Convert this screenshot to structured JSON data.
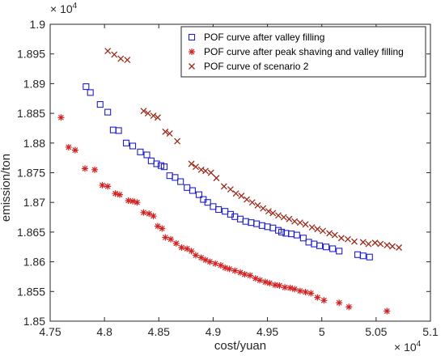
{
  "chart_data": {
    "type": "scatter",
    "xlabel": "cost/yuan",
    "ylabel": "emission/ton",
    "x_multiplier_label": "× 10",
    "x_multiplier_exp": "4",
    "y_multiplier_label": "× 10",
    "y_multiplier_exp": "4",
    "xlim": [
      4.75,
      5.1
    ],
    "ylim": [
      1.85,
      1.9
    ],
    "x_ticks": [
      "4.75",
      "4.8",
      "4.85",
      "4.9",
      "4.95",
      "5",
      "5.05",
      "5.1"
    ],
    "x_tick_values": [
      4.75,
      4.8,
      4.85,
      4.9,
      4.95,
      5.0,
      5.05,
      5.1
    ],
    "y_ticks": [
      "1.85",
      "1.855",
      "1.86",
      "1.865",
      "1.87",
      "1.875",
      "1.88",
      "1.885",
      "1.89",
      "1.895",
      "1.9"
    ],
    "y_tick_values": [
      1.85,
      1.855,
      1.86,
      1.865,
      1.87,
      1.875,
      1.88,
      1.885,
      1.89,
      1.895,
      1.9
    ],
    "grid": false,
    "legend_position": "top-right",
    "series": [
      {
        "name": "POF curve after  valley filling",
        "marker": "square",
        "color": "#1f1fcf",
        "points": [
          [
            4.783,
            1.8895
          ],
          [
            4.787,
            1.8885
          ],
          [
            4.796,
            1.8865
          ],
          [
            4.803,
            1.8852
          ],
          [
            4.808,
            1.8822
          ],
          [
            4.813,
            1.8821
          ],
          [
            4.82,
            1.88
          ],
          [
            4.826,
            1.8795
          ],
          [
            4.833,
            1.8785
          ],
          [
            4.839,
            1.878
          ],
          [
            4.843,
            1.877
          ],
          [
            4.848,
            1.8765
          ],
          [
            4.852,
            1.8762
          ],
          [
            4.855,
            1.876
          ],
          [
            4.86,
            1.8745
          ],
          [
            4.865,
            1.8742
          ],
          [
            4.87,
            1.8735
          ],
          [
            4.876,
            1.8725
          ],
          [
            4.881,
            1.872
          ],
          [
            4.887,
            1.8713
          ],
          [
            4.891,
            1.8705
          ],
          [
            4.895,
            1.87
          ],
          [
            4.9,
            1.8693
          ],
          [
            4.905,
            1.8688
          ],
          [
            4.911,
            1.8685
          ],
          [
            4.916,
            1.868
          ],
          [
            4.92,
            1.8676
          ],
          [
            4.925,
            1.8672
          ],
          [
            4.93,
            1.8668
          ],
          [
            4.935,
            1.8666
          ],
          [
            4.94,
            1.8664
          ],
          [
            4.945,
            1.8661
          ],
          [
            4.95,
            1.8659
          ],
          [
            4.955,
            1.8657
          ],
          [
            4.96,
            1.8653
          ],
          [
            4.963,
            1.865
          ],
          [
            4.967,
            1.8648
          ],
          [
            4.972,
            1.8647
          ],
          [
            4.977,
            1.8645
          ],
          [
            4.983,
            1.864
          ],
          [
            4.988,
            1.8633
          ],
          [
            4.993,
            1.863
          ],
          [
            4.998,
            1.8627
          ],
          [
            5.004,
            1.8625
          ],
          [
            5.01,
            1.8622
          ],
          [
            5.016,
            1.8618
          ],
          [
            5.033,
            1.8612
          ],
          [
            5.038,
            1.861
          ],
          [
            5.044,
            1.8608
          ]
        ]
      },
      {
        "name": "POF curve after peak shaving and valley filling",
        "marker": "star",
        "color": "#d42020",
        "points": [
          [
            4.76,
            1.8843
          ],
          [
            4.767,
            1.8793
          ],
          [
            4.773,
            1.8788
          ],
          [
            4.782,
            1.8757
          ],
          [
            4.791,
            1.8755
          ],
          [
            4.798,
            1.8729
          ],
          [
            4.803,
            1.8727
          ],
          [
            4.81,
            1.8715
          ],
          [
            4.814,
            1.8713
          ],
          [
            4.822,
            1.8703
          ],
          [
            4.826,
            1.8702
          ],
          [
            4.83,
            1.87
          ],
          [
            4.836,
            1.8683
          ],
          [
            4.841,
            1.8681
          ],
          [
            4.845,
            1.8677
          ],
          [
            4.849,
            1.866
          ],
          [
            4.853,
            1.8656
          ],
          [
            4.856,
            1.8641
          ],
          [
            4.861,
            1.8638
          ],
          [
            4.866,
            1.8631
          ],
          [
            4.871,
            1.8624
          ],
          [
            4.876,
            1.8622
          ],
          [
            4.88,
            1.8618
          ],
          [
            4.884,
            1.8611
          ],
          [
            4.889,
            1.8607
          ],
          [
            4.893,
            1.8603
          ],
          [
            4.897,
            1.86
          ],
          [
            4.902,
            1.8597
          ],
          [
            4.907,
            1.8594
          ],
          [
            4.911,
            1.859
          ],
          [
            4.915,
            1.8588
          ],
          [
            4.92,
            1.8585
          ],
          [
            4.925,
            1.8582
          ],
          [
            4.929,
            1.8579
          ],
          [
            4.934,
            1.8577
          ],
          [
            4.939,
            1.8572
          ],
          [
            4.943,
            1.8569
          ],
          [
            4.948,
            1.8566
          ],
          [
            4.952,
            1.8564
          ],
          [
            4.957,
            1.8561
          ],
          [
            4.961,
            1.856
          ],
          [
            4.966,
            1.8557
          ],
          [
            4.971,
            1.8556
          ],
          [
            4.975,
            1.8554
          ],
          [
            4.98,
            1.8551
          ],
          [
            4.985,
            1.8549
          ],
          [
            4.99,
            1.8547
          ],
          [
            4.996,
            1.854
          ],
          [
            5.002,
            1.8535
          ],
          [
            5.016,
            1.8531
          ],
          [
            5.025,
            1.8524
          ],
          [
            5.06,
            1.8517
          ]
        ]
      },
      {
        "name": "POF curve of scenario 2",
        "marker": "x",
        "color": "#9c2a1a",
        "points": [
          [
            4.803,
            1.8955
          ],
          [
            4.809,
            1.8949
          ],
          [
            4.815,
            1.8942
          ],
          [
            4.821,
            1.894
          ],
          [
            4.836,
            1.8854
          ],
          [
            4.84,
            1.885
          ],
          [
            4.845,
            1.8846
          ],
          [
            4.849,
            1.8843
          ],
          [
            4.856,
            1.8819
          ],
          [
            4.86,
            1.8816
          ],
          [
            4.867,
            1.8803
          ],
          [
            4.88,
            1.8765
          ],
          [
            4.884,
            1.876
          ],
          [
            4.889,
            1.8755
          ],
          [
            4.893,
            1.8753
          ],
          [
            4.898,
            1.875
          ],
          [
            4.903,
            1.8741
          ],
          [
            4.91,
            1.8727
          ],
          [
            4.916,
            1.8722
          ],
          [
            4.921,
            1.8715
          ],
          [
            4.926,
            1.8711
          ],
          [
            4.931,
            1.8705
          ],
          [
            4.936,
            1.87
          ],
          [
            4.941,
            1.8695
          ],
          [
            4.946,
            1.869
          ],
          [
            4.951,
            1.8685
          ],
          [
            4.955,
            1.8682
          ],
          [
            4.96,
            1.8678
          ],
          [
            4.965,
            1.8675
          ],
          [
            4.97,
            1.8672
          ],
          [
            4.975,
            1.8668
          ],
          [
            4.98,
            1.8666
          ],
          [
            4.985,
            1.8663
          ],
          [
            4.991,
            1.8658
          ],
          [
            4.996,
            1.8655
          ],
          [
            5.001,
            1.8652
          ],
          [
            5.007,
            1.8648
          ],
          [
            5.012,
            1.8645
          ],
          [
            5.018,
            1.864
          ],
          [
            5.024,
            1.8638
          ],
          [
            5.03,
            1.8634
          ],
          [
            5.038,
            1.8633
          ],
          [
            5.043,
            1.863
          ],
          [
            5.049,
            1.8632
          ],
          [
            5.054,
            1.863
          ],
          [
            5.06,
            1.8628
          ],
          [
            5.065,
            1.8626
          ],
          [
            5.071,
            1.8624
          ]
        ]
      }
    ]
  }
}
